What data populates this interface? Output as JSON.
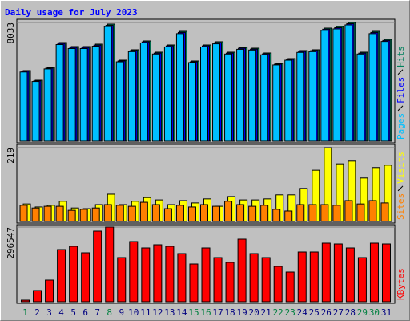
{
  "chart_data": [
    {
      "type": "bar",
      "title": "Daily usage for July 2023",
      "ylim": [
        0,
        8033
      ],
      "yticks": [
        8033
      ],
      "series": [
        {
          "name": "Pages",
          "color": "#00c0ff",
          "values": [
            4680,
            4040,
            4890,
            6540,
            6270,
            6270,
            6430,
            7760,
            5370,
            6060,
            6650,
            5900,
            6380,
            7280,
            5320,
            6380,
            6590,
            5900,
            6220,
            6170,
            5850,
            5160,
            5480,
            6010,
            6060,
            7500,
            7600,
            7870,
            5900,
            7280,
            6750
          ]
        },
        {
          "name": "Files",
          "color": "#0000ff",
          "values": [
            4730,
            4080,
            4940,
            6610,
            6340,
            6340,
            6500,
            7840,
            5430,
            6130,
            6720,
            5960,
            6450,
            7360,
            5370,
            6450,
            6660,
            5960,
            6290,
            6230,
            5910,
            5210,
            5530,
            6070,
            6130,
            7580,
            7680,
            7950,
            5960,
            7360,
            6820
          ]
        },
        {
          "name": "Hits",
          "color": "#00805c",
          "values": [
            4777,
            4125,
            4994,
            6676,
            6405,
            6405,
            6568,
            7925,
            5482,
            6188,
            6785,
            6025,
            6513,
            7436,
            5428,
            6513,
            6731,
            6025,
            6350,
            6296,
            5971,
            5265,
            5591,
            6134,
            6188,
            7653,
            7762,
            8033,
            6025,
            7436,
            6893
          ]
        }
      ]
    },
    {
      "type": "bar",
      "ylim": [
        0,
        219
      ],
      "yticks": [
        219
      ],
      "series": [
        {
          "name": "Sites",
          "color": "#ff8000",
          "values": [
            48,
            40,
            45,
            45,
            33,
            36,
            40,
            50,
            48,
            45,
            57,
            50,
            38,
            48,
            43,
            50,
            45,
            60,
            50,
            45,
            48,
            36,
            31,
            50,
            50,
            50,
            48,
            62,
            52,
            62,
            55
          ]
        },
        {
          "name": "Visits",
          "color": "#ffff00",
          "values": [
            52,
            43,
            48,
            60,
            40,
            38,
            50,
            81,
            50,
            60,
            71,
            64,
            50,
            62,
            55,
            67,
            45,
            74,
            64,
            64,
            67,
            79,
            79,
            98,
            152,
            219,
            171,
            179,
            129,
            160,
            167
          ]
        }
      ]
    },
    {
      "type": "bar",
      "ylim": [
        0,
        296547
      ],
      "yticks": [
        296547
      ],
      "categories": [
        "1",
        "2",
        "3",
        "4",
        "5",
        "6",
        "7",
        "8",
        "9",
        "10",
        "11",
        "12",
        "13",
        "14",
        "15",
        "16",
        "17",
        "18",
        "19",
        "20",
        "21",
        "22",
        "23",
        "24",
        "25",
        "26",
        "27",
        "28",
        "29",
        "30",
        "31"
      ],
      "category_colors": [
        "#008040",
        "#000080",
        "#000080",
        "#000080",
        "#000080",
        "#000080",
        "#000080",
        "#008040",
        "#000080",
        "#000080",
        "#000080",
        "#000080",
        "#000080",
        "#000080",
        "#008040",
        "#008040",
        "#000080",
        "#000080",
        "#000080",
        "#000080",
        "#000080",
        "#008040",
        "#008040",
        "#000080",
        "#000080",
        "#000080",
        "#000080",
        "#000080",
        "#008040",
        "#008040",
        "#000080"
      ],
      "series": [
        {
          "name": "KBytes",
          "color": "#ff0000",
          "values": [
            6378,
            44641,
            86094,
            207264,
            220019,
            194509,
            280604,
            296547,
            175377,
            239151,
            213641,
            226396,
            220019,
            191321,
            149868,
            213641,
            175377,
            156245,
            248717,
            191321,
            175377,
            140302,
            117981,
            197698,
            197698,
            232774,
            229585,
            213641,
            175377,
            232774,
            229585
          ]
        }
      ]
    }
  ]
}
